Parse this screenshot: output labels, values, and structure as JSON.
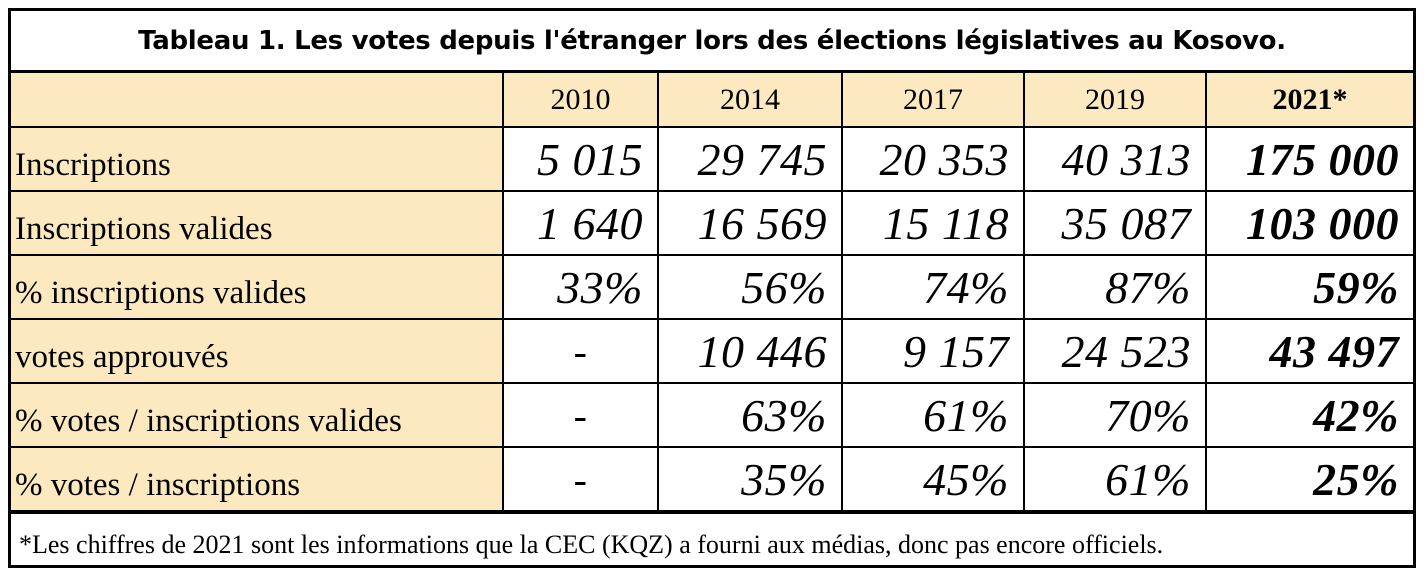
{
  "title": "Tableau 1. Les votes depuis l'étranger lors des élections législatives au Kosovo.",
  "columns": [
    "",
    "2010",
    "2014",
    "2017",
    "2019",
    "2021*"
  ],
  "rows": [
    {
      "label": "Inscriptions",
      "values": [
        "5 015",
        "29 745",
        "20 353",
        "40 313",
        "175 000"
      ]
    },
    {
      "label": "Inscriptions valides",
      "values": [
        "1 640",
        "16 569",
        "15 118",
        "35 087",
        "103 000"
      ]
    },
    {
      "label": "% inscriptions valides",
      "values": [
        "33%",
        "56%",
        "74%",
        "87%",
        "59%"
      ]
    },
    {
      "label": "votes approuvés",
      "values": [
        "-",
        "10 446",
        "9 157",
        "24 523",
        "43 497"
      ]
    },
    {
      "label": "% votes / inscriptions valides",
      "values": [
        "-",
        "63%",
        "61%",
        "70%",
        "42%"
      ]
    },
    {
      "label": "% votes / inscriptions",
      "values": [
        "-",
        "35%",
        "45%",
        "61%",
        "25%"
      ]
    }
  ],
  "footnote": "*Les chiffres de 2021 sont les informations que la CEC (KQZ) a fourni aux médias, donc pas encore officiels.",
  "colors": {
    "header_fill": "#fde9c0",
    "border": "#000000"
  }
}
